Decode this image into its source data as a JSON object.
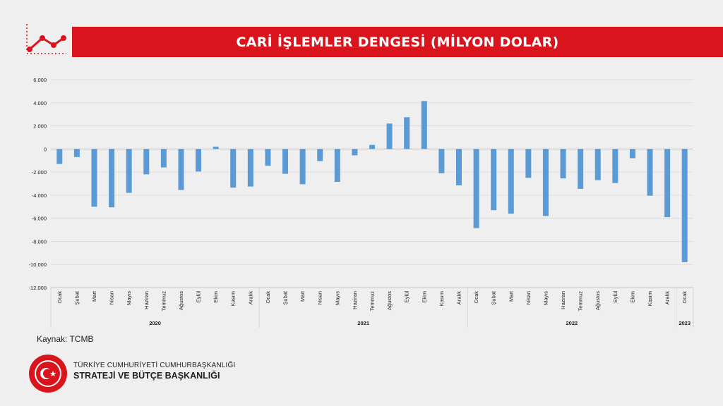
{
  "title": "CARİ İŞLEMLER DENGESİ (MİLYON DOLAR)",
  "source": "Kaynak: TCMB",
  "org": {
    "line1": "TÜRKİYE CUMHURİYETİ CUMHURBAŞKANLIĞI",
    "line2": "STRATEJİ VE BÜTÇE BAŞKANLIĞI"
  },
  "icons": {
    "trend": "trend-chart-icon",
    "seal": "government-seal-logo"
  },
  "colors": {
    "bar": "#5b9bd5",
    "title_bg": "#d9141c",
    "grid": "#d9d9d9"
  },
  "chart_data": {
    "type": "bar",
    "title": "CARİ İŞLEMLER DENGESİ (MİLYON DOLAR)",
    "xlabel": "",
    "ylabel": "",
    "ylim": [
      -12000,
      6000
    ],
    "yticks": [
      6000,
      4000,
      2000,
      0,
      -2000,
      -4000,
      -6000,
      -8000,
      -10000,
      -12000
    ],
    "ytick_labels": [
      "6.000",
      "4.000",
      "2.000",
      "0",
      "-2.000",
      "-4.000",
      "-6.000",
      "-8.000",
      "-10.000",
      "-12.000"
    ],
    "grid": true,
    "legend": "none",
    "categories": [
      "Ocak",
      "Şubat",
      "Mart",
      "Nisan",
      "Mayıs",
      "Haziran",
      "Temmuz",
      "Ağustos",
      "Eylül",
      "Ekim",
      "Kasım",
      "Aralık",
      "Ocak",
      "Şubat",
      "Mart",
      "Nisan",
      "Mayıs",
      "Haziran",
      "Temmuz",
      "Ağustos",
      "Eylül",
      "Ekim",
      "Kasım",
      "Aralık",
      "Ocak",
      "Şubat",
      "Mart",
      "Nisan",
      "Mayıs",
      "Haziran",
      "Temmuz",
      "Ağustos",
      "Eylül",
      "Ekim",
      "Kasım",
      "Aralık",
      "Ocak"
    ],
    "groups": [
      {
        "label": "2020",
        "count": 12
      },
      {
        "label": "2021",
        "count": 12
      },
      {
        "label": "2022",
        "count": 12
      },
      {
        "label": "2023",
        "count": 1
      }
    ],
    "values": [
      -1300,
      -700,
      -5000,
      -5050,
      -3800,
      -2200,
      -1600,
      -3550,
      -1950,
      200,
      -3350,
      -3250,
      -1450,
      -2150,
      -3050,
      -1050,
      -2850,
      -550,
      350,
      2200,
      2750,
      4150,
      -2100,
      -3150,
      -6850,
      -5300,
      -5600,
      -2500,
      -5800,
      -2550,
      -3450,
      -2700,
      -2950,
      -800,
      -4050,
      -5900,
      -9800
    ]
  }
}
